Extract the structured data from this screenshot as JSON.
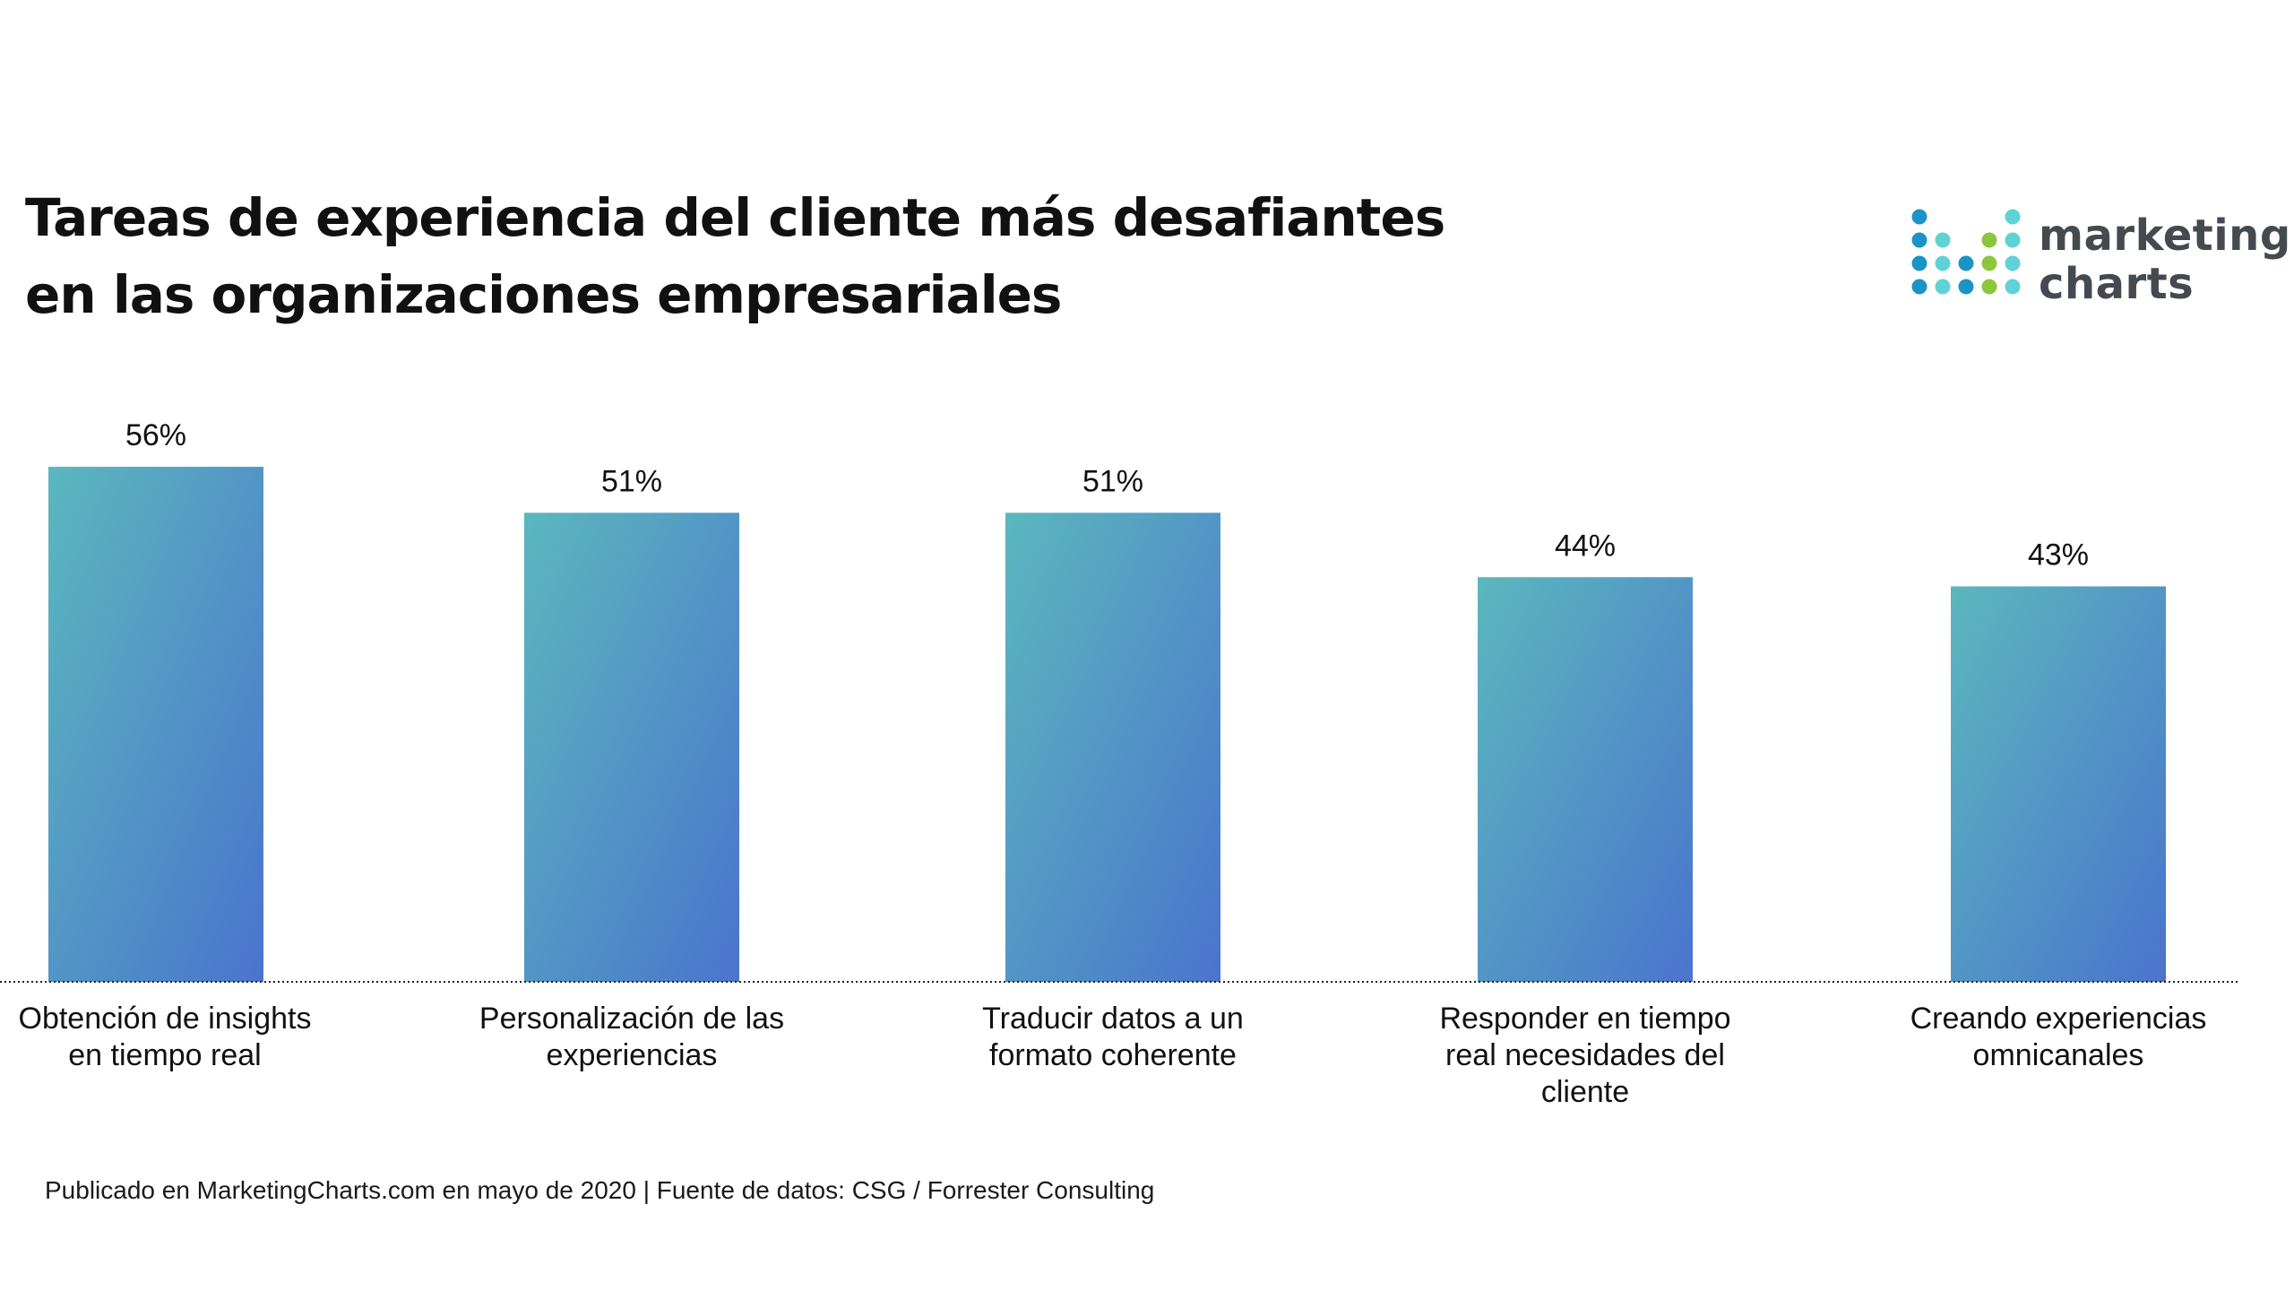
{
  "title_lines": [
    "Tareas de experiencia del cliente más desafiantes",
    "en las organizaciones empresariales"
  ],
  "logo": {
    "text_lines": [
      "marketing",
      "charts"
    ],
    "dot_colors": {
      "blue": "#1b94c5",
      "teal": "#5fd2d6",
      "green": "#8cc63f"
    }
  },
  "footer": "Publicado en MarketingCharts.com en mayo de 2020 | Fuente de datos: CSG / Forrester Consulting",
  "colors": {
    "bar_gradient_top": "#5bb7be",
    "bar_gradient_bottom": "#4a74cd",
    "baseline": "#222222",
    "text": "#111111"
  },
  "chart_data": {
    "type": "bar",
    "categories": [
      [
        "Obtención de insights",
        "en tiempo real"
      ],
      [
        "Personalización de las",
        "experiencias"
      ],
      [
        "Traducir datos a un",
        "formato coherente"
      ],
      [
        "Responder en tiempo",
        "real necesidades del",
        "cliente"
      ],
      [
        "Creando experiencias",
        "omnicanales"
      ]
    ],
    "values": [
      56,
      51,
      51,
      44,
      43
    ],
    "value_labels": [
      "56%",
      "51%",
      "51%",
      "44%",
      "43%"
    ],
    "ylim": [
      0,
      60
    ],
    "grid": false,
    "legend": "none"
  }
}
